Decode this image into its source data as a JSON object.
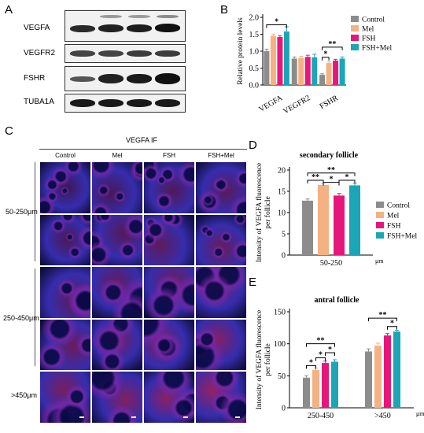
{
  "panels": {
    "a": "A",
    "b": "B",
    "c": "C",
    "d": "D",
    "e": "E"
  },
  "blot": {
    "proteins": [
      "VEGFA",
      "VEGFR2",
      "FSHR",
      "TUBA1A"
    ]
  },
  "colors": {
    "Control": "#8c8c8c",
    "Mel": "#f4b183",
    "FSH": "#e6177b",
    "FSH+Mel": "#1ba6b5"
  },
  "legend_labels": [
    "Control",
    "Mel",
    "FSH",
    "FSH+Mel"
  ],
  "if_panel": {
    "title": "VEGFA  IF",
    "columns": [
      "Control",
      "Mel",
      "FSH",
      "FSH+Mel"
    ],
    "row_groups": [
      "50-250μm",
      "250-450μm",
      ">450μm"
    ]
  },
  "chart_data": [
    {
      "id": "B",
      "type": "bar",
      "categories": [
        "VEGFA",
        "VEGFR2",
        "FSHR"
      ],
      "series": [
        {
          "name": "Control",
          "values": [
            1.0,
            0.78,
            0.3
          ],
          "errors": [
            0.06,
            0.05,
            0.03
          ]
        },
        {
          "name": "Mel",
          "values": [
            1.45,
            0.8,
            0.65
          ],
          "errors": [
            0.05,
            0.05,
            0.05
          ]
        },
        {
          "name": "FSH",
          "values": [
            1.42,
            0.83,
            0.72
          ],
          "errors": [
            0.04,
            0.05,
            0.04
          ]
        },
        {
          "name": "FSH+Mel",
          "values": [
            1.58,
            0.82,
            0.78
          ],
          "errors": [
            0.14,
            0.09,
            0.05
          ]
        }
      ],
      "ylabel": "Relative protein levels",
      "ylim": [
        0,
        2.0
      ],
      "yticks": [
        "0.0",
        "0.5",
        "1.0",
        "1.5",
        "2.0"
      ],
      "significance": [
        "*",
        "**",
        "*"
      ],
      "legend": "top-right"
    },
    {
      "id": "D",
      "type": "bar",
      "title": "secondary follicle",
      "categories": [
        "50-250"
      ],
      "series": [
        {
          "name": "Control",
          "values": [
            12.8
          ],
          "errors": [
            0.4
          ]
        },
        {
          "name": "Mel",
          "values": [
            16.5
          ],
          "errors": [
            0.3
          ]
        },
        {
          "name": "FSH",
          "values": [
            14.0
          ],
          "errors": [
            0.5
          ]
        },
        {
          "name": "FSH+Mel",
          "values": [
            16.4
          ],
          "errors": [
            0.5
          ]
        }
      ],
      "ylabel": "Intensity of VEGFA fluorescence per follicle",
      "xunit": "μm",
      "ylim": [
        0,
        20
      ],
      "yticks": [
        "0",
        "5",
        "10",
        "15",
        "20"
      ],
      "significance": [
        "**",
        "**",
        "*",
        "*"
      ],
      "legend": "right"
    },
    {
      "id": "E",
      "type": "bar",
      "title": "antral follicle",
      "categories": [
        "250-450",
        ">450"
      ],
      "series": [
        {
          "name": "Control",
          "values": [
            47,
            88
          ],
          "errors": [
            3,
            4
          ]
        },
        {
          "name": "Mel",
          "values": [
            59,
            97
          ],
          "errors": [
            3,
            4
          ]
        },
        {
          "name": "FSH",
          "values": [
            70,
            113
          ],
          "errors": [
            3,
            3
          ]
        },
        {
          "name": "FSH+Mel",
          "values": [
            72,
            119
          ],
          "errors": [
            3,
            2
          ]
        }
      ],
      "ylabel": "Intensity of VEGFA fluorescence per follicle",
      "xunit": "μm",
      "ylim": [
        0,
        150
      ],
      "yticks": [
        "0",
        "50",
        "100",
        "150"
      ],
      "significance": [
        "*",
        "**",
        "*",
        "*",
        "**",
        "*"
      ]
    }
  ]
}
